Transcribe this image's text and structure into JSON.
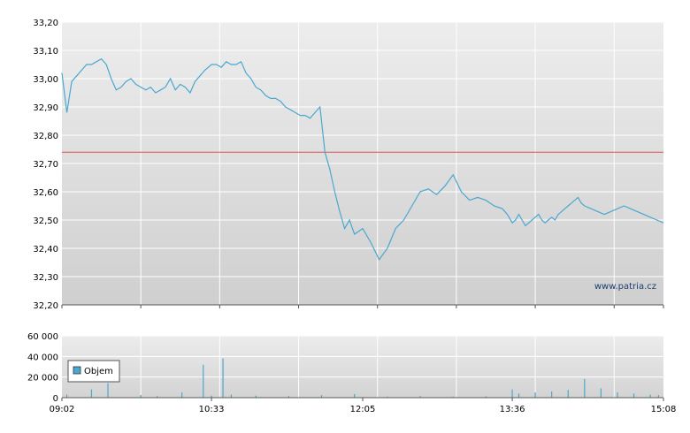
{
  "chart_data": [
    {
      "type": "line",
      "title": "",
      "xlabel": "",
      "ylabel": "",
      "ylim": [
        32.2,
        33.2
      ],
      "yticks": [
        "33,20",
        "33,10",
        "33,00",
        "32,90",
        "32,80",
        "32,70",
        "32,60",
        "32,50",
        "32,40",
        "32,30",
        "32,20"
      ],
      "grid": true,
      "reference_line": {
        "value": 32.74,
        "color": "#d9534f"
      },
      "watermark": "www.patria.cz",
      "line_color": "#4aa8d0",
      "series": [
        {
          "x": [
            "09:02",
            "09:05",
            "09:08",
            "09:11",
            "09:14",
            "09:17",
            "09:20",
            "09:23",
            "09:26",
            "09:29",
            "09:32",
            "09:35",
            "09:38",
            "09:41",
            "09:44",
            "09:47",
            "09:50",
            "09:53",
            "09:56",
            "09:59",
            "10:02",
            "10:05",
            "10:08",
            "10:11",
            "10:14",
            "10:17",
            "10:20",
            "10:23",
            "10:26",
            "10:29",
            "10:33",
            "10:36",
            "10:39",
            "10:42",
            "10:45",
            "10:48",
            "10:51",
            "10:54",
            "10:57",
            "11:00",
            "11:03",
            "11:06",
            "11:09",
            "11:12",
            "11:15",
            "11:18",
            "11:21",
            "11:24",
            "11:27",
            "11:30",
            "11:33",
            "11:36",
            "11:39",
            "11:42",
            "11:45",
            "11:48",
            "11:51",
            "11:54",
            "11:57",
            "12:00",
            "12:05",
            "12:10",
            "12:15",
            "12:20",
            "12:25",
            "12:30",
            "12:35",
            "12:40",
            "12:45",
            "12:50",
            "12:55",
            "13:00",
            "13:05",
            "13:10",
            "13:15",
            "13:20",
            "13:25",
            "13:30",
            "13:33",
            "13:36",
            "13:38",
            "13:40",
            "13:42",
            "13:44",
            "13:46",
            "13:48",
            "13:50",
            "13:52",
            "13:54",
            "13:56",
            "13:58",
            "14:00",
            "14:02",
            "14:04",
            "14:06",
            "14:08",
            "14:10",
            "14:12",
            "14:14",
            "14:16",
            "14:18",
            "14:20",
            "14:24",
            "14:28",
            "14:32",
            "14:36",
            "14:40",
            "14:44",
            "14:48",
            "14:52",
            "14:56",
            "15:00",
            "15:04",
            "15:08"
          ],
          "values": [
            33.02,
            32.88,
            32.99,
            33.01,
            33.03,
            33.05,
            33.05,
            33.06,
            33.07,
            33.05,
            33.0,
            32.96,
            32.97,
            32.99,
            33.0,
            32.98,
            32.97,
            32.96,
            32.97,
            32.95,
            32.96,
            32.97,
            33.0,
            32.96,
            32.98,
            32.97,
            32.95,
            32.99,
            33.01,
            33.03,
            33.05,
            33.05,
            33.04,
            33.06,
            33.05,
            33.05,
            33.06,
            33.02,
            33.0,
            32.97,
            32.96,
            32.94,
            32.93,
            32.93,
            32.92,
            32.9,
            32.89,
            32.88,
            32.87,
            32.87,
            32.86,
            32.88,
            32.9,
            32.74,
            32.68,
            32.6,
            32.53,
            32.47,
            32.5,
            32.45,
            32.47,
            32.42,
            32.36,
            32.4,
            32.47,
            32.5,
            32.55,
            32.6,
            32.61,
            32.59,
            32.62,
            32.66,
            32.6,
            32.57,
            32.58,
            32.57,
            32.55,
            32.54,
            32.52,
            32.49,
            32.5,
            32.52,
            32.5,
            32.48,
            32.49,
            32.5,
            32.51,
            32.52,
            32.5,
            32.49,
            32.5,
            32.51,
            32.5,
            32.52,
            32.53,
            32.54,
            32.55,
            32.56,
            32.57,
            32.58,
            32.56,
            32.55,
            32.54,
            32.53,
            32.52,
            32.53,
            32.54,
            32.55,
            32.54,
            32.53,
            32.52,
            32.51,
            32.5,
            32.49
          ]
        }
      ]
    },
    {
      "type": "bar",
      "title": "",
      "xlabel": "",
      "ylabel": "",
      "ylim": [
        0,
        60000
      ],
      "yticks": [
        "60 000",
        "40 000",
        "20 000",
        "0"
      ],
      "xticks": [
        "09:02",
        "10:33",
        "12:05",
        "13:36",
        "15:08"
      ],
      "grid": true,
      "legend": {
        "placement": "top-left",
        "entries": [
          "Objem"
        ]
      },
      "bar_color": "#4aa8d0",
      "series": [
        {
          "name": "Objem",
          "x": [
            "09:05",
            "09:20",
            "09:30",
            "09:50",
            "10:00",
            "10:15",
            "10:28",
            "10:33",
            "10:40",
            "10:45",
            "11:00",
            "11:20",
            "11:40",
            "12:00",
            "12:20",
            "12:40",
            "13:00",
            "13:20",
            "13:36",
            "13:40",
            "13:50",
            "14:00",
            "14:10",
            "14:20",
            "14:30",
            "14:40",
            "14:50",
            "15:00",
            "15:05"
          ],
          "values": [
            3000,
            8000,
            14000,
            2500,
            1500,
            5000,
            32000,
            2000,
            38000,
            3000,
            2000,
            1500,
            2500,
            3500,
            1000,
            1500,
            1000,
            1200,
            8000,
            4000,
            5000,
            6000,
            7500,
            18000,
            9000,
            5000,
            4000,
            3000,
            2500
          ]
        }
      ]
    }
  ]
}
